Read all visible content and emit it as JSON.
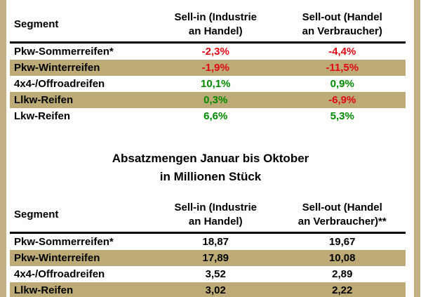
{
  "colors": {
    "border_tan": "#c3b082",
    "row_highlight_tan": "#bcab77",
    "negative_red": "#e30613",
    "positive_green": "#008a00",
    "text_black": "#000000"
  },
  "display": {
    "table1_headers": {
      "segment": "Segment",
      "sell_in": "Sell-in (Industrie\nan Handel)",
      "sell_out": "Sell-out (Handel\nan Verbraucher)"
    },
    "section_title": {
      "line1": "Absatzmengen Januar bis Oktober",
      "line2": "in Millionen Stück"
    },
    "table2_headers": {
      "segment": "Segment",
      "sell_in": "Sell-in (Industrie\nan Handel)",
      "sell_out": "Sell-out (Handel\nan Verbraucher)**"
    }
  },
  "chart_data": [
    {
      "type": "table",
      "title": "",
      "columns": [
        "Segment",
        "Sell-in (Industrie an Handel)",
        "Sell-out (Handel an Verbraucher)"
      ],
      "rows": [
        [
          "Pkw-Sommerreifen*",
          "-2,3%",
          "-4,4%"
        ],
        [
          "Pkw-Winterreifen",
          "-1,9%",
          "-11,5%"
        ],
        [
          "4x4-/Offroadreifen",
          "10,1%",
          "0,9%"
        ],
        [
          "Llkw-Reifen",
          "0,3%",
          "-6,9%"
        ],
        [
          "Lkw-Reifen",
          "6,6%",
          "5,3%"
        ]
      ],
      "value_color_rule": "negative values red, positive values green"
    },
    {
      "type": "table",
      "title": "Absatzmengen Januar bis Oktober in Millionen Stück",
      "columns": [
        "Segment",
        "Sell-in (Industrie an Handel)",
        "Sell-out (Handel an Verbraucher)**"
      ],
      "rows": [
        [
          "Pkw-Sommerreifen*",
          "18,87",
          "19,67"
        ],
        [
          "Pkw-Winterreifen",
          "17,89",
          "10,08"
        ],
        [
          "4x4-/Offroadreifen",
          "3,52",
          "2,89"
        ],
        [
          "Llkw-Reifen",
          "3,02",
          "2,22"
        ]
      ]
    }
  ]
}
